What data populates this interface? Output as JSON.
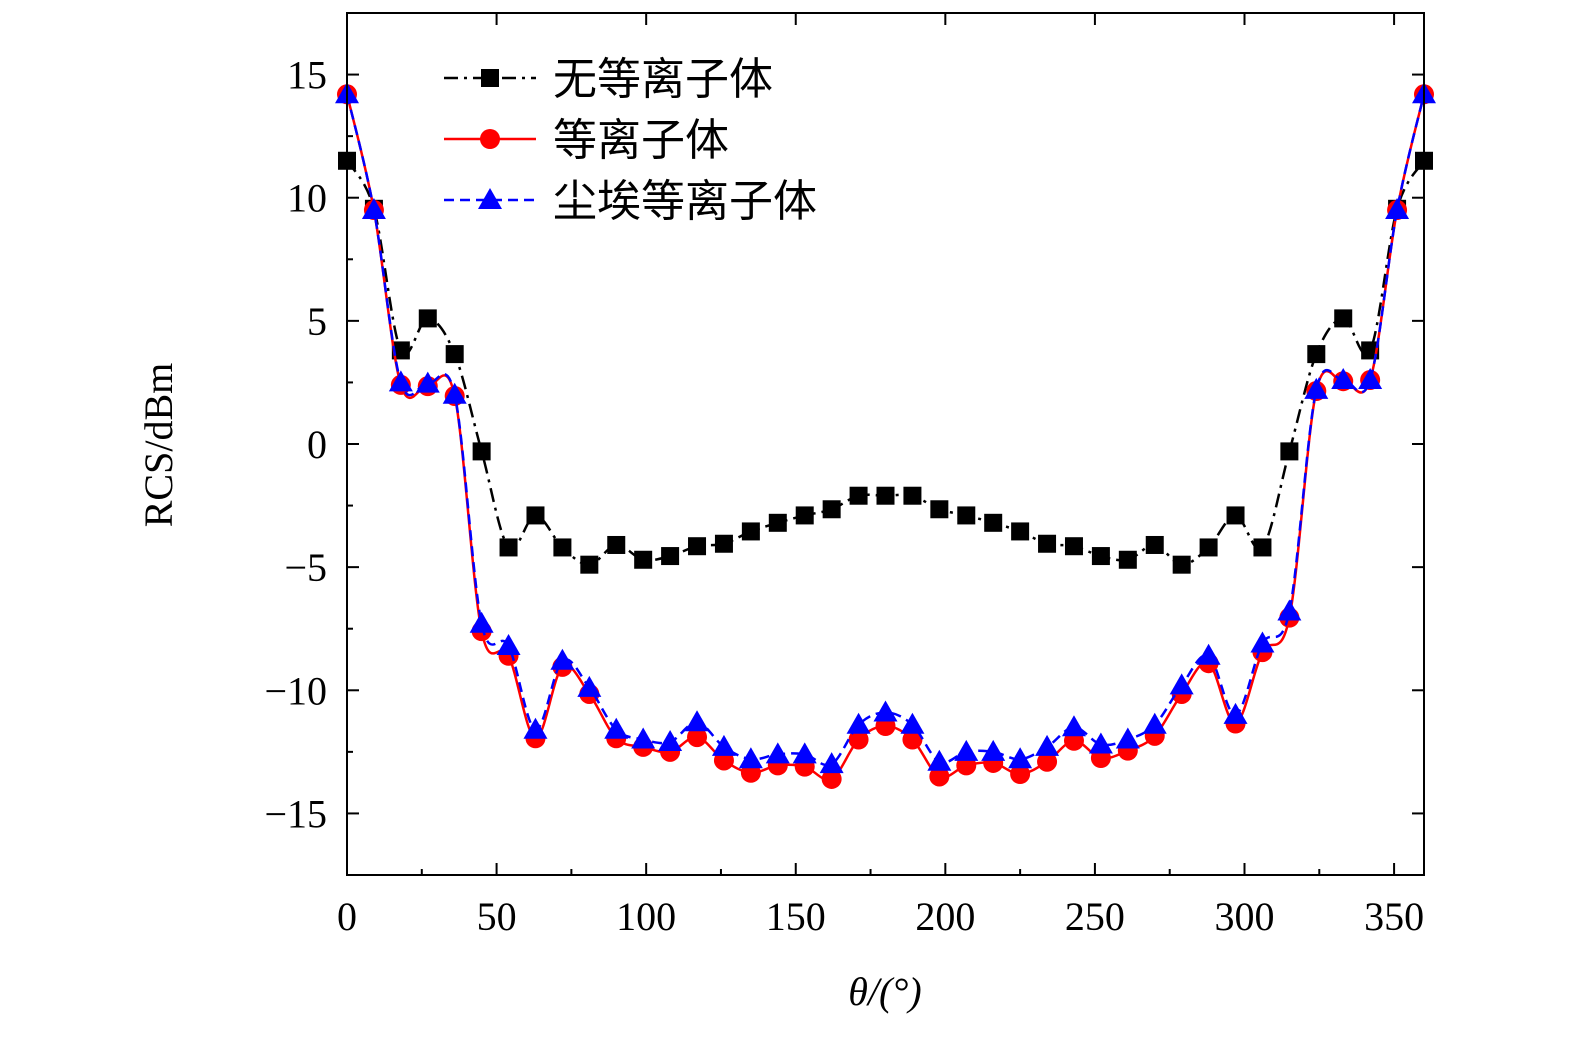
{
  "chart_data": {
    "type": "line",
    "xlabel": "θ/(°)",
    "ylabel": "RCS/dBm",
    "xlim": [
      0,
      360
    ],
    "ylim": [
      -17.5,
      17.5
    ],
    "xticks": [
      0,
      50,
      100,
      150,
      200,
      250,
      300,
      350
    ],
    "yticks": [
      15,
      10,
      5,
      0,
      -5,
      -10,
      -15
    ],
    "ytick_labels": [
      "15",
      "10",
      "5",
      "0",
      "−5",
      "−10",
      "−15"
    ],
    "grid": false,
    "legend_position": "top-left",
    "x": [
      0,
      9,
      18,
      27,
      36,
      45,
      54,
      63,
      72,
      81,
      90,
      99,
      108,
      117,
      126,
      135,
      144,
      153,
      162,
      171,
      180,
      189,
      198,
      207,
      216,
      225,
      234,
      243,
      252,
      261,
      270,
      279,
      288,
      297,
      306,
      315,
      324,
      333,
      342,
      351,
      360
    ],
    "series": [
      {
        "name": "无等离子体",
        "color": "#000000",
        "marker": "square",
        "line": "dash-dot",
        "values": [
          11.5,
          9.55,
          3.8,
          5.1,
          3.65,
          -0.3,
          -4.2,
          -2.9,
          -4.2,
          -4.9,
          -4.1,
          -4.7,
          -4.55,
          -4.15,
          -4.05,
          -3.55,
          -3.2,
          -2.9,
          -2.65,
          -2.1,
          -2.1,
          -2.1,
          -2.65,
          -2.9,
          -3.2,
          -3.55,
          -4.05,
          -4.15,
          -4.55,
          -4.7,
          -4.1,
          -4.9,
          -4.2,
          -2.9,
          -4.2,
          -0.3,
          3.65,
          5.1,
          3.8,
          9.55,
          11.5
        ]
      },
      {
        "name": "等离子体",
        "color": "#ff0000",
        "marker": "circle",
        "line": "solid",
        "values": [
          14.2,
          9.5,
          2.4,
          2.35,
          1.95,
          -7.6,
          -8.6,
          -11.95,
          -9.05,
          -10.15,
          -11.95,
          -12.3,
          -12.5,
          -11.9,
          -12.85,
          -13.35,
          -13.05,
          -13.1,
          -13.6,
          -12.0,
          -11.45,
          -12.0,
          -13.5,
          -13.05,
          -12.95,
          -13.4,
          -12.9,
          -12.05,
          -12.75,
          -12.45,
          -11.85,
          -10.15,
          -8.9,
          -11.35,
          -8.45,
          -7.05,
          2.15,
          2.55,
          2.6,
          9.5,
          14.2
        ]
      },
      {
        "name": "尘埃等离子体",
        "color": "#0000ff",
        "marker": "triangle",
        "line": "dashed",
        "values": [
          14.2,
          9.5,
          2.5,
          2.45,
          2.0,
          -7.3,
          -8.2,
          -11.6,
          -8.8,
          -9.9,
          -11.6,
          -12.0,
          -12.1,
          -11.3,
          -12.3,
          -12.8,
          -12.6,
          -12.6,
          -13.0,
          -11.4,
          -10.9,
          -11.4,
          -12.9,
          -12.5,
          -12.5,
          -12.8,
          -12.3,
          -11.5,
          -12.2,
          -12.0,
          -11.4,
          -9.8,
          -8.6,
          -11.0,
          -8.1,
          -6.8,
          2.2,
          2.6,
          2.6,
          9.5,
          14.2
        ]
      }
    ]
  }
}
